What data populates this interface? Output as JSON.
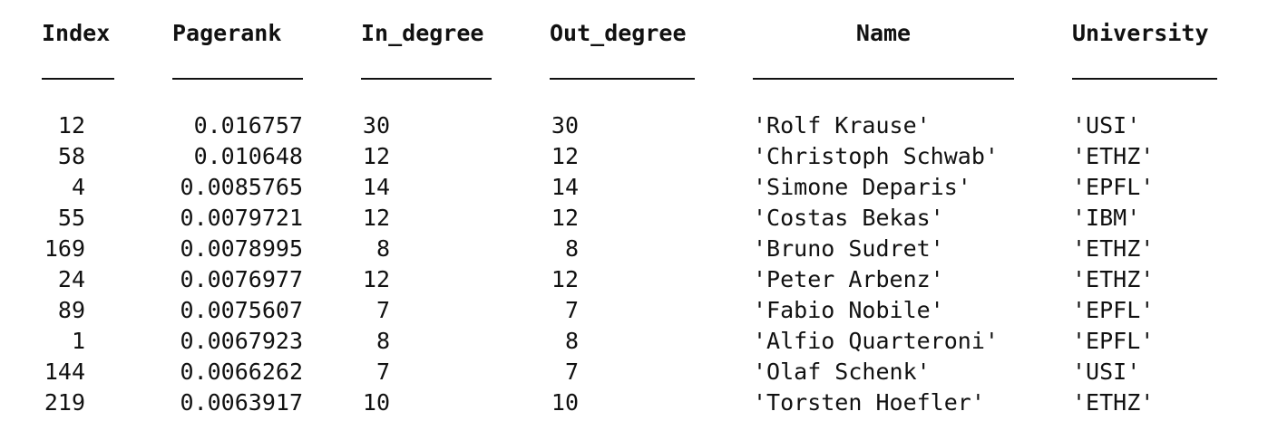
{
  "headers": {
    "index": "Index",
    "pagerank": "Pagerank",
    "in_degree": "In_degree",
    "out_degree": "Out_degree",
    "name": "Name",
    "university": "University"
  },
  "rows": [
    {
      "index": "12",
      "pagerank": "0.016757",
      "in_degree": "30",
      "out_degree": "30",
      "name": "'Rolf Krause'",
      "university": "'USI'"
    },
    {
      "index": "58",
      "pagerank": "0.010648",
      "in_degree": "12",
      "out_degree": "12",
      "name": "'Christoph Schwab'",
      "university": "'ETHZ'"
    },
    {
      "index": "4",
      "pagerank": "0.0085765",
      "in_degree": "14",
      "out_degree": "14",
      "name": "'Simone Deparis'",
      "university": "'EPFL'"
    },
    {
      "index": "55",
      "pagerank": "0.0079721",
      "in_degree": "12",
      "out_degree": "12",
      "name": "'Costas Bekas'",
      "university": "'IBM'"
    },
    {
      "index": "169",
      "pagerank": "0.0078995",
      "in_degree": "8",
      "out_degree": "8",
      "name": "'Bruno Sudret'",
      "university": "'ETHZ'"
    },
    {
      "index": "24",
      "pagerank": "0.0076977",
      "in_degree": "12",
      "out_degree": "12",
      "name": "'Peter Arbenz'",
      "university": "'ETHZ'"
    },
    {
      "index": "89",
      "pagerank": "0.0075607",
      "in_degree": "7",
      "out_degree": "7",
      "name": "'Fabio Nobile'",
      "university": "'EPFL'"
    },
    {
      "index": "1",
      "pagerank": "0.0067923",
      "in_degree": "8",
      "out_degree": "8",
      "name": "'Alfio Quarteroni'",
      "university": "'EPFL'"
    },
    {
      "index": "144",
      "pagerank": "0.0066262",
      "in_degree": "7",
      "out_degree": "7",
      "name": "'Olaf Schenk'",
      "university": "'USI'"
    },
    {
      "index": "219",
      "pagerank": "0.0063917",
      "in_degree": "10",
      "out_degree": "10",
      "name": "'Torsten Hoefler'",
      "university": "'ETHZ'"
    }
  ]
}
